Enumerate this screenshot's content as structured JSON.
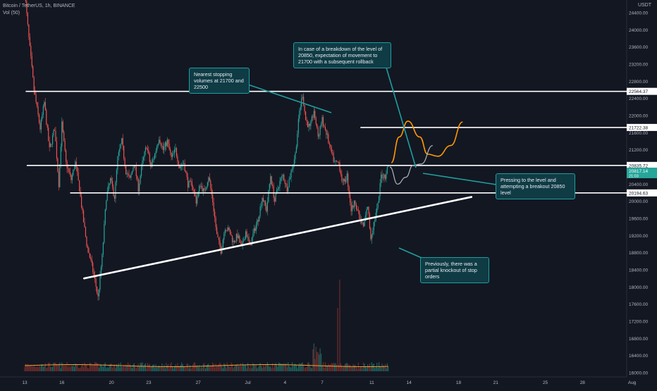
{
  "header": {
    "symbol_line": "Bitcoin / TetherUS, 1h, BINANCE",
    "volume_line": "Vol (50)"
  },
  "axis_title": "USDT",
  "colors": {
    "background": "#131722",
    "candle_up": "#26a69a",
    "candle_down": "#ef5350",
    "level_line": "#ffffff",
    "projection_orange": "#ff9800",
    "projection_grey": "#b2b5be",
    "note_bg": "#0f3b45",
    "note_border": "#1f9e9e",
    "price_badge": "#26a69a",
    "volume_ma": "#f0a030"
  },
  "chart_data": {
    "type": "candlestick",
    "symbol": "Bitcoin / TetherUS",
    "interval": "1h",
    "exchange": "BINANCE",
    "ylim": [
      16000,
      25000
    ],
    "y_ticks": [
      16000,
      16400,
      16800,
      17200,
      17600,
      18000,
      18400,
      18800,
      19200,
      19600,
      20000,
      20400,
      20800,
      21200,
      21600,
      22000,
      22400,
      22800,
      23200,
      23600,
      24000,
      24400
    ],
    "x_ticks": [
      "13",
      "16",
      "20",
      "23",
      "27",
      "Jul",
      "4",
      "7",
      "11",
      "14",
      "18",
      "21",
      "25",
      "28",
      "Aug"
    ],
    "x_tick_hours": [
      0,
      72,
      168,
      240,
      336,
      432,
      504,
      576,
      672,
      744,
      840,
      912,
      1008,
      1080,
      1176
    ],
    "price_path": [
      [
        0,
        24900
      ],
      [
        8,
        23800
      ],
      [
        18,
        22600
      ],
      [
        30,
        21700
      ],
      [
        38,
        22300
      ],
      [
        48,
        21200
      ],
      [
        58,
        21700
      ],
      [
        66,
        20400
      ],
      [
        72,
        21800
      ],
      [
        80,
        20900
      ],
      [
        90,
        20500
      ],
      [
        98,
        20900
      ],
      [
        106,
        20300
      ],
      [
        112,
        19700
      ],
      [
        120,
        19000
      ],
      [
        128,
        18600
      ],
      [
        136,
        18150
      ],
      [
        142,
        17750
      ],
      [
        150,
        18700
      ],
      [
        158,
        20100
      ],
      [
        166,
        20500
      ],
      [
        174,
        20100
      ],
      [
        180,
        21000
      ],
      [
        188,
        21400
      ],
      [
        196,
        20700
      ],
      [
        204,
        20500
      ],
      [
        212,
        20900
      ],
      [
        220,
        20300
      ],
      [
        228,
        20900
      ],
      [
        236,
        21300
      ],
      [
        244,
        20800
      ],
      [
        252,
        21100
      ],
      [
        260,
        21500
      ],
      [
        268,
        21200
      ],
      [
        276,
        21400
      ],
      [
        284,
        21000
      ],
      [
        292,
        21200
      ],
      [
        300,
        20800
      ],
      [
        308,
        20900
      ],
      [
        316,
        20400
      ],
      [
        324,
        20400
      ],
      [
        332,
        20000
      ],
      [
        340,
        20400
      ],
      [
        348,
        20200
      ],
      [
        356,
        20600
      ],
      [
        364,
        20000
      ],
      [
        372,
        19200
      ],
      [
        380,
        18850
      ],
      [
        388,
        19400
      ],
      [
        396,
        19300
      ],
      [
        404,
        19050
      ],
      [
        412,
        19200
      ],
      [
        420,
        18900
      ],
      [
        428,
        19300
      ],
      [
        436,
        18950
      ],
      [
        444,
        19300
      ],
      [
        452,
        19600
      ],
      [
        460,
        20100
      ],
      [
        468,
        19800
      ],
      [
        476,
        20600
      ],
      [
        484,
        20000
      ],
      [
        492,
        20400
      ],
      [
        500,
        20600
      ],
      [
        508,
        20300
      ],
      [
        516,
        20700
      ],
      [
        524,
        21100
      ],
      [
        532,
        22100
      ],
      [
        538,
        22500
      ],
      [
        544,
        21900
      ],
      [
        552,
        21700
      ],
      [
        560,
        22100
      ],
      [
        568,
        21500
      ],
      [
        576,
        21900
      ],
      [
        584,
        21600
      ],
      [
        592,
        21200
      ],
      [
        600,
        20900
      ],
      [
        608,
        20900
      ],
      [
        616,
        20400
      ],
      [
        624,
        20600
      ],
      [
        632,
        19800
      ],
      [
        640,
        20000
      ],
      [
        648,
        19600
      ],
      [
        656,
        19400
      ],
      [
        664,
        19900
      ],
      [
        670,
        19150
      ],
      [
        676,
        19500
      ],
      [
        684,
        19900
      ],
      [
        690,
        20600
      ],
      [
        698,
        20600
      ],
      [
        704,
        20830
      ]
    ],
    "levels": [
      {
        "label": "22564.37",
        "price": 22564.37,
        "from_hour": 2
      },
      {
        "label": "21722.38",
        "price": 21722.38,
        "from_hour": 650
      },
      {
        "label": "20835.72",
        "price": 20835.72,
        "from_hour": 4
      },
      {
        "label": "20194.63",
        "price": 20194.63,
        "from_hour": 88
      }
    ],
    "current_price": {
      "label": "20817.14",
      "sublabel": "21:03",
      "price": 20817.14
    },
    "trendline": [
      [
        115,
        18200
      ],
      [
        865,
        20100
      ]
    ],
    "projection_orange": [
      [
        710,
        20900
      ],
      [
        725,
        21500
      ],
      [
        742,
        21870
      ],
      [
        765,
        21500
      ],
      [
        780,
        21100
      ],
      [
        800,
        21050
      ],
      [
        825,
        21300
      ],
      [
        848,
        21850
      ]
    ],
    "projection_grey": [
      [
        707,
        20800
      ],
      [
        722,
        20400
      ],
      [
        738,
        20560
      ],
      [
        752,
        20840
      ],
      [
        768,
        20870
      ],
      [
        790,
        21300
      ]
    ],
    "volume_ma_label": "Vol (50)"
  },
  "annotations": [
    {
      "id": "note-breakdown",
      "text": "In case of a breakdown of the level of 20850, expectation of movement to 21700 with a subsequent rollback"
    },
    {
      "id": "note-stopping",
      "text": "Nearest stopping volumes at 21700 and 22500"
    },
    {
      "id": "note-pressing",
      "text": "Pressing to the level and attempting a breakout 20850 level"
    },
    {
      "id": "note-previously",
      "text": "Previously, there was a partial knockout of stop orders"
    }
  ]
}
